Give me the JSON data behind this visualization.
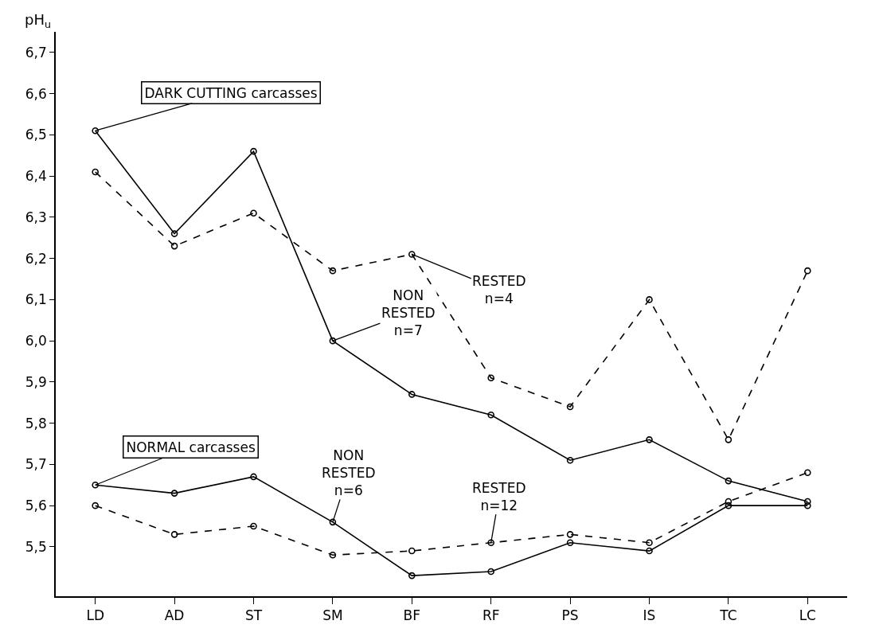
{
  "chart_data": {
    "type": "line",
    "ylabel": "pH$_{u}$",
    "categories": [
      "LD",
      "AD",
      "ST",
      "SM",
      "BF",
      "RF",
      "PS",
      "IS",
      "TC",
      "LC"
    ],
    "series": [
      {
        "color": "#000000",
        "line_style": "solid",
        "values": [
          6.51,
          6.26,
          6.46,
          6.0,
          5.87,
          5.82,
          5.71,
          5.76,
          5.66,
          5.61
        ]
      },
      {
        "color": "#000000",
        "line_style": "dashed",
        "values": [
          6.41,
          6.23,
          6.31,
          6.17,
          6.21,
          5.91,
          5.84,
          6.1,
          5.76,
          6.17
        ]
      },
      {
        "color": "#000000",
        "line_style": "solid",
        "values": [
          5.65,
          5.63,
          5.67,
          5.56,
          5.43,
          5.44,
          5.51,
          5.49,
          5.6,
          5.6
        ]
      },
      {
        "color": "#000000",
        "line_style": "dashed",
        "values": [
          5.6,
          5.53,
          5.55,
          5.48,
          5.49,
          5.51,
          5.53,
          5.51,
          5.61,
          5.68
        ]
      }
    ],
    "ylim": [
      5.38,
      6.75
    ],
    "yticks": [
      {
        "value": 5.5,
        "label": "5,5"
      },
      {
        "value": 5.6,
        "label": "5,6"
      },
      {
        "value": 5.7,
        "label": "5,7"
      },
      {
        "value": 5.8,
        "label": "5,8"
      },
      {
        "value": 5.9,
        "label": "5,9"
      },
      {
        "value": 6.0,
        "label": "6,0"
      },
      {
        "value": 6.1,
        "label": "6,1"
      },
      {
        "value": 6.2,
        "label": "6,2"
      },
      {
        "value": 6.3,
        "label": "6,3"
      },
      {
        "value": 6.4,
        "label": "6,4"
      },
      {
        "value": 6.5,
        "label": "6,5"
      },
      {
        "value": 6.6,
        "label": "6,6"
      },
      {
        "value": 6.7,
        "label": "6,7"
      }
    ],
    "annotations": [
      {
        "text": "DARK CUTTING carcasses",
        "x": "LD",
        "y": 6.51
      },
      {
        "text": "NON\nRESTED\nn=7",
        "x": "SM",
        "y": 6.0
      },
      {
        "text": "RESTED\nn=4",
        "x": "BF",
        "y": 6.21
      },
      {
        "text": "NORMAL carcasses",
        "x": "LD",
        "y": 5.65
      },
      {
        "text": "NON\nRESTED\nn=6",
        "x": "SM",
        "y": 5.56
      },
      {
        "text": "RESTED\nn=12",
        "x": "RF",
        "y": 5.51
      }
    ],
    "marker": "circle",
    "grid": false
  }
}
